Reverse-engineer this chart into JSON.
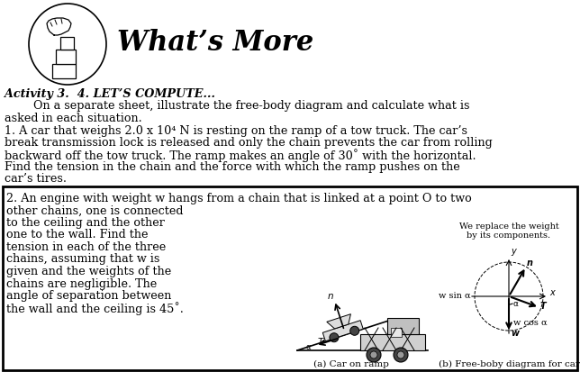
{
  "title": "What’s More",
  "activity_label": "Activity 3.  4. LET’S COMPUTE...",
  "intro_text": "        On a separate sheet, illustrate the free-body diagram and calculate what is asked in each situation.",
  "problem1_line1": "1. A car that weighs 2.0 x 10⁴ N is resting on the ramp of a tow truck. The car’s",
  "problem1_line2": "break transmission lock is released and only the chain prevents the car from rolling",
  "problem1_line3": "backward off the tow truck. The ramp makes an angle of 30˚ with the horizontal.",
  "problem1_line4": "Find the tension in the chain and the force with which the ramp pushes on the",
  "problem1_line5": "car’s tires.",
  "problem2_line1": "2. An engine with weight w hangs from a chain that is linked at a point O to two",
  "problem2_line2": "other chains, one is connected",
  "problem2_line3": "to the ceiling and the other",
  "problem2_line4": "one to the wall. Find the",
  "problem2_line5": "tension in each of the three",
  "problem2_line6": "chains, assuming that w is",
  "problem2_line7": "given and the weights of the",
  "problem2_line8": "chains are negligible. The",
  "problem2_line9": "angle of separation between",
  "problem2_line10": "the wall and the ceiling is 45˚.",
  "caption_a": "(a) Car on ramp",
  "caption_b": "(b) Free-boby diagram for car",
  "diagram_label_1": "We replace the weight",
  "diagram_label_2": "by its components.",
  "bg_color": "#ffffff",
  "text_color": "#000000",
  "lh": 13.5,
  "fs": 9.2
}
